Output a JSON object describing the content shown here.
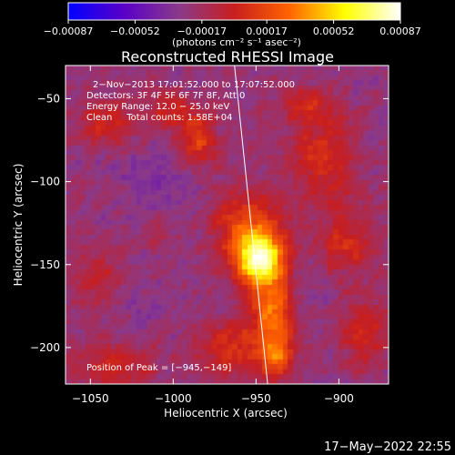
{
  "chart_data": {
    "type": "heatmap",
    "title": "Reconstructed RHESSI Image",
    "colorbar": {
      "ticks": [
        -0.00087,
        -0.00052,
        -0.00017,
        0.00017,
        0.00052,
        0.00087
      ],
      "tick_labels": [
        "−0.00087",
        "−0.00052",
        "−0.00017",
        "0.00017",
        "0.00052",
        "0.00087"
      ],
      "units_label": "(photons cm⁻² s⁻¹ asec⁻²)",
      "range": [
        -0.00087,
        0.00087
      ],
      "colormap_stops": [
        "#0000ff",
        "#5a00c8",
        "#8a3a8a",
        "#c81e1e",
        "#ff6400",
        "#ffff00",
        "#ffffff"
      ]
    },
    "xlabel": "Heliocentric X (arcsec)",
    "ylabel": "Heliocentric Y (arcsec)",
    "xlim": [
      -1065,
      -870
    ],
    "ylim": [
      -222,
      -30
    ],
    "xticks": [
      -1050,
      -1000,
      -950,
      -900
    ],
    "xtick_labels": [
      "−1050",
      "−1000",
      "−950",
      "−900"
    ],
    "yticks": [
      -50,
      -100,
      -150,
      -200
    ],
    "ytick_labels": [
      "−50",
      "−100",
      "−150",
      "−200"
    ],
    "annotations": [
      "2−Nov−2013 17:01:52.000 to 17:07:52.000",
      "Detectors: 3F 4F 5F 6F 7F 8F, Att 0",
      "Energy Range: 12.0 − 25.0 keV",
      "Clean     Total counts: 1.58E+04"
    ],
    "peak_label": "Position of Peak = [−945,−149]",
    "peak": {
      "x": -945,
      "y": -149
    },
    "limb_line": [
      [
        -963,
        -30
      ],
      [
        -943,
        -222
      ]
    ],
    "blobs": [
      {
        "x": -947,
        "y": -148,
        "sx": 10,
        "sy": 11,
        "a": 1.0
      },
      {
        "x": -955,
        "y": -128,
        "sx": 14,
        "sy": 16,
        "a": 0.45
      },
      {
        "x": -940,
        "y": -178,
        "sx": 9,
        "sy": 12,
        "a": 0.55
      },
      {
        "x": -938,
        "y": -205,
        "sx": 8,
        "sy": 10,
        "a": 0.5
      },
      {
        "x": -965,
        "y": -200,
        "sx": 14,
        "sy": 12,
        "a": 0.35
      },
      {
        "x": -1000,
        "y": -58,
        "sx": 12,
        "sy": 8,
        "a": 0.25
      },
      {
        "x": -985,
        "y": -75,
        "sx": 8,
        "sy": 10,
        "a": 0.4
      },
      {
        "x": -1040,
        "y": -65,
        "sx": 14,
        "sy": 10,
        "a": 0.28
      },
      {
        "x": -1045,
        "y": -160,
        "sx": 12,
        "sy": 14,
        "a": 0.22
      },
      {
        "x": -1035,
        "y": -210,
        "sx": 18,
        "sy": 10,
        "a": 0.28
      },
      {
        "x": -910,
        "y": -85,
        "sx": 14,
        "sy": 18,
        "a": 0.3
      },
      {
        "x": -895,
        "y": -135,
        "sx": 12,
        "sy": 16,
        "a": 0.3
      },
      {
        "x": -885,
        "y": -190,
        "sx": 10,
        "sy": 14,
        "a": 0.28
      },
      {
        "x": -920,
        "y": -55,
        "sx": 12,
        "sy": 8,
        "a": 0.25
      },
      {
        "x": -1010,
        "y": -130,
        "sx": 8,
        "sy": 8,
        "a": 0.15
      }
    ],
    "dips": [
      {
        "x": -1010,
        "y": -100,
        "sx": 16,
        "sy": 22,
        "a": 0.4
      },
      {
        "x": -1025,
        "y": -175,
        "sx": 14,
        "sy": 16,
        "a": 0.3
      },
      {
        "x": -915,
        "y": -160,
        "sx": 8,
        "sy": 10,
        "a": 0.25
      },
      {
        "x": -975,
        "y": -175,
        "sx": 10,
        "sy": 12,
        "a": 0.2
      }
    ]
  },
  "footer": {
    "timestamp": "17−May−2022 22:55"
  }
}
